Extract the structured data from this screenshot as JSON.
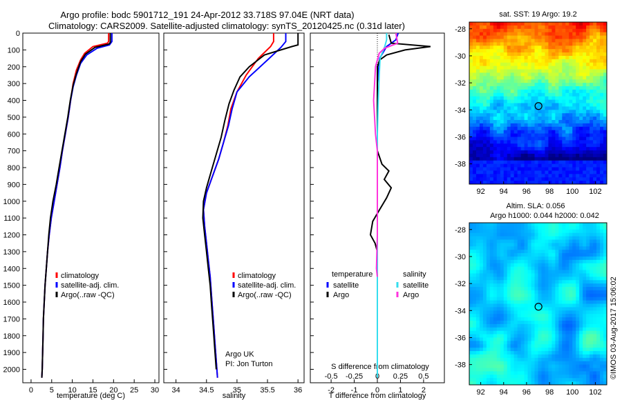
{
  "title_line1": "Argo profile: bodc 5901712_191 24-Apr-2012 33.718S 97.04E (NRT data)",
  "title_line2": "Climatology: CARS2009. Satellite-adjusted climatology: synTS_20120425.nc (0.31d later)",
  "colors": {
    "climatology": "#ff0000",
    "satellite": "#0000ff",
    "argo": "#000000",
    "argo_salinity": "#ff33dd",
    "satellite_salinity": "#33ddee"
  },
  "chart_data": [
    {
      "type": "line",
      "name_key": "temperature",
      "xlabel": "temperature (deg C)",
      "ylabel": "",
      "xlim": [
        -2,
        31
      ],
      "ylim": [
        2080,
        0
      ],
      "xticks": [
        0,
        5,
        10,
        15,
        20,
        25,
        30
      ],
      "yticks": [
        0,
        100,
        200,
        300,
        400,
        500,
        600,
        700,
        800,
        900,
        1000,
        1100,
        1200,
        1300,
        1400,
        1500,
        1600,
        1700,
        1800,
        1900,
        2000
      ],
      "legend": [
        "climatology",
        "satellite-adj. clim.",
        "Argo(..raw -QC)"
      ],
      "series": [
        {
          "name": "climatology",
          "color": "#ff0000",
          "points": [
            [
              18.8,
              0
            ],
            [
              18.8,
              50
            ],
            [
              18.5,
              60
            ],
            [
              15,
              80
            ],
            [
              13,
              120
            ],
            [
              12,
              160
            ],
            [
              11,
              220
            ],
            [
              10.2,
              300
            ],
            [
              9.6,
              400
            ],
            [
              9,
              500
            ],
            [
              8.3,
              600
            ],
            [
              7.6,
              700
            ],
            [
              7,
              800
            ],
            [
              6.3,
              900
            ],
            [
              5.6,
              1000
            ],
            [
              4.9,
              1100
            ],
            [
              4.4,
              1200
            ],
            [
              4,
              1300
            ],
            [
              3.7,
              1400
            ],
            [
              3.4,
              1500
            ],
            [
              3.2,
              1600
            ],
            [
              3,
              1700
            ],
            [
              2.9,
              1800
            ],
            [
              2.8,
              1900
            ],
            [
              2.7,
              2000
            ],
            [
              2.6,
              2050
            ]
          ]
        },
        {
          "name": "satellite-adj. clim.",
          "color": "#0000ff",
          "points": [
            [
              19.6,
              0
            ],
            [
              19.6,
              50
            ],
            [
              19,
              70
            ],
            [
              16,
              90
            ],
            [
              13.5,
              130
            ],
            [
              12,
              180
            ],
            [
              11,
              250
            ],
            [
              10.2,
              320
            ],
            [
              9.6,
              400
            ],
            [
              9,
              500
            ],
            [
              8.3,
              600
            ],
            [
              7.6,
              700
            ],
            [
              7,
              800
            ],
            [
              6.3,
              900
            ],
            [
              5.6,
              1000
            ],
            [
              4.9,
              1100
            ],
            [
              4.4,
              1200
            ],
            [
              4,
              1300
            ],
            [
              3.7,
              1400
            ],
            [
              3.4,
              1500
            ],
            [
              3.2,
              1600
            ],
            [
              3,
              1700
            ],
            [
              2.9,
              1800
            ],
            [
              2.8,
              1900
            ],
            [
              2.7,
              2000
            ],
            [
              2.6,
              2050
            ]
          ]
        },
        {
          "name": "Argo(..raw -QC)",
          "color": "#000000",
          "points": [
            [
              19.2,
              0
            ],
            [
              19.2,
              55
            ],
            [
              18.9,
              65
            ],
            [
              15.5,
              85
            ],
            [
              13.2,
              125
            ],
            [
              12,
              170
            ],
            [
              11,
              240
            ],
            [
              10.2,
              310
            ],
            [
              9.5,
              400
            ],
            [
              8.9,
              500
            ],
            [
              8.2,
              600
            ],
            [
              7.5,
              700
            ],
            [
              6.8,
              800
            ],
            [
              6.1,
              900
            ],
            [
              5.3,
              1000
            ],
            [
              4.7,
              1100
            ],
            [
              4.3,
              1200
            ],
            [
              4,
              1300
            ],
            [
              3.7,
              1400
            ],
            [
              3.4,
              1500
            ],
            [
              3.2,
              1600
            ],
            [
              3,
              1700
            ],
            [
              2.9,
              1800
            ],
            [
              2.8,
              1900
            ],
            [
              2.7,
              2000
            ],
            [
              2.6,
              2050
            ]
          ]
        }
      ]
    },
    {
      "type": "line",
      "name_key": "salinity",
      "xlabel": "salinity",
      "ylabel": "",
      "xlim": [
        33.8,
        36.1
      ],
      "ylim": [
        2080,
        0
      ],
      "xticks": [
        34,
        34.5,
        35,
        35.5,
        36
      ],
      "xticklabels": [
        "34",
        "34.5",
        "35",
        "35.5",
        "36"
      ],
      "legend": [
        "climatology",
        "satellite-adj. clim.",
        "Argo(..raw -QC)"
      ],
      "annotation": [
        "Argo UK",
        "PI: Jon Turton"
      ],
      "series": [
        {
          "name": "climatology",
          "color": "#ff0000",
          "points": [
            [
              35.6,
              0
            ],
            [
              35.6,
              50
            ],
            [
              35.55,
              80
            ],
            [
              35.35,
              150
            ],
            [
              35.15,
              250
            ],
            [
              35,
              350
            ],
            [
              34.9,
              450
            ],
            [
              34.85,
              550
            ],
            [
              34.78,
              650
            ],
            [
              34.7,
              750
            ],
            [
              34.6,
              850
            ],
            [
              34.5,
              950
            ],
            [
              34.45,
              1050
            ],
            [
              34.47,
              1150
            ],
            [
              34.5,
              1250
            ],
            [
              34.53,
              1350
            ],
            [
              34.56,
              1450
            ],
            [
              34.58,
              1550
            ],
            [
              34.6,
              1650
            ],
            [
              34.62,
              1750
            ],
            [
              34.64,
              1850
            ],
            [
              34.66,
              1950
            ],
            [
              34.68,
              2050
            ]
          ]
        },
        {
          "name": "satellite-adj. clim.",
          "color": "#0000ff",
          "points": [
            [
              35.8,
              0
            ],
            [
              35.8,
              50
            ],
            [
              35.72,
              85
            ],
            [
              35.5,
              160
            ],
            [
              35.2,
              260
            ],
            [
              35,
              350
            ],
            [
              34.92,
              450
            ],
            [
              34.86,
              550
            ],
            [
              34.78,
              650
            ],
            [
              34.7,
              750
            ],
            [
              34.6,
              850
            ],
            [
              34.5,
              950
            ],
            [
              34.45,
              1050
            ],
            [
              34.47,
              1150
            ],
            [
              34.5,
              1250
            ],
            [
              34.53,
              1350
            ],
            [
              34.56,
              1450
            ],
            [
              34.58,
              1550
            ],
            [
              34.6,
              1650
            ],
            [
              34.62,
              1750
            ],
            [
              34.64,
              1850
            ],
            [
              34.66,
              1950
            ],
            [
              34.68,
              2050
            ]
          ]
        },
        {
          "name": "Argo(..raw -QC)",
          "color": "#000000",
          "points": [
            [
              36,
              0
            ],
            [
              36,
              70
            ],
            [
              35.9,
              80
            ],
            [
              35.45,
              130
            ],
            [
              35.2,
              200
            ],
            [
              35.05,
              260
            ],
            [
              34.95,
              340
            ],
            [
              34.87,
              420
            ],
            [
              34.8,
              520
            ],
            [
              34.74,
              620
            ],
            [
              34.66,
              720
            ],
            [
              34.58,
              820
            ],
            [
              34.5,
              920
            ],
            [
              34.45,
              1000
            ],
            [
              34.44,
              1100
            ],
            [
              34.47,
              1200
            ],
            [
              34.5,
              1300
            ],
            [
              34.53,
              1400
            ],
            [
              34.56,
              1500
            ],
            [
              34.58,
              1600
            ],
            [
              34.6,
              1700
            ],
            [
              34.62,
              1800
            ],
            [
              34.64,
              1900
            ],
            [
              34.66,
              2000
            ]
          ]
        }
      ]
    },
    {
      "type": "line",
      "name_key": "difference",
      "xlabel": "T difference from climatology",
      "xlabel_top": "S difference from climatology",
      "xlim": [
        -2.9,
        2.9
      ],
      "ylim": [
        2080,
        0
      ],
      "xticks": [
        -2,
        -1,
        0,
        1,
        2
      ],
      "top_ticks": [
        -0.5,
        -0.25,
        0,
        0.25,
        0.5
      ],
      "top_ticklabels": [
        "-0.5",
        "-0.25",
        "0",
        "0.25",
        "0.5"
      ],
      "legend_groups": {
        "temperature": [
          "satellite",
          "Argo"
        ],
        "salinity": [
          "satellite",
          "Argo"
        ]
      },
      "series": [
        {
          "name": "temperature satellite",
          "color": "#0000ff",
          "points": [
            [
              0.9,
              0
            ],
            [
              0.8,
              40
            ],
            [
              0.4,
              80
            ],
            [
              0.1,
              150
            ],
            [
              0,
              300
            ],
            [
              0,
              500
            ],
            [
              0,
              900
            ],
            [
              0,
              1200
            ],
            [
              0,
              1500
            ],
            [
              0,
              2050
            ]
          ]
        },
        {
          "name": "temperature Argo",
          "color": "#000000",
          "points": [
            [
              0.5,
              10
            ],
            [
              0.6,
              60
            ],
            [
              2.3,
              80
            ],
            [
              1.2,
              100
            ],
            [
              0.4,
              130
            ],
            [
              0.1,
              160
            ],
            [
              0,
              200
            ],
            [
              0,
              700
            ],
            [
              0.2,
              780
            ],
            [
              0.5,
              820
            ],
            [
              0.3,
              870
            ],
            [
              0.6,
              920
            ],
            [
              0.4,
              980
            ],
            [
              0.1,
              1050
            ],
            [
              -0.2,
              1120
            ],
            [
              -0.3,
              1200
            ],
            [
              -0.1,
              1250
            ],
            [
              0,
              1300
            ],
            [
              0,
              2050
            ]
          ]
        },
        {
          "name": "salinity satellite",
          "color": "#33ddee",
          "points": [
            [
              0.1,
              0
            ],
            [
              0.1,
              40
            ],
            [
              0.08,
              80
            ],
            [
              0.03,
              150
            ],
            [
              0.02,
              250
            ],
            [
              0.01,
              400
            ],
            [
              0,
              600
            ],
            [
              0,
              2050
            ]
          ]
        },
        {
          "name": "salinity Argo",
          "color": "#ff33dd",
          "points": [
            [
              0.2,
              0
            ],
            [
              0.22,
              60
            ],
            [
              0.08,
              90
            ],
            [
              0.02,
              120
            ],
            [
              -0.02,
              200
            ],
            [
              -0.03,
              300
            ],
            [
              -0.04,
              400
            ],
            [
              -0.03,
              500
            ],
            [
              -0.02,
              600
            ],
            [
              0,
              700
            ],
            [
              0,
              1000
            ],
            [
              0,
              1200
            ],
            [
              -0.01,
              1400
            ],
            [
              0,
              1450
            ]
          ]
        }
      ]
    },
    {
      "type": "heatmap",
      "name_key": "sst-map",
      "title": "sat. SST: 19 Argo: 19.2",
      "xlim": [
        91,
        103
      ],
      "ylim": [
        -39.5,
        -27.5
      ],
      "xticks": [
        92,
        94,
        96,
        98,
        100,
        102
      ],
      "yticks": [
        -38,
        -36,
        -34,
        -32,
        -30,
        -28
      ],
      "marker": [
        97.04,
        -33.718
      ]
    },
    {
      "type": "heatmap",
      "name_key": "sla-map",
      "title_line1": "Altim. SLA: 0.056",
      "title_line2": "Argo h1000: 0.044 h2000: 0.042",
      "xlim": [
        91,
        103
      ],
      "ylim": [
        -39.5,
        -27.5
      ],
      "xticks": [
        92,
        94,
        96,
        98,
        100,
        102
      ],
      "yticks": [
        -38,
        -36,
        -34,
        -32,
        -30,
        -28
      ],
      "marker": [
        97.04,
        -33.718
      ]
    }
  ],
  "side_text": "©IMOS 03-Aug-2017 15:06:02"
}
